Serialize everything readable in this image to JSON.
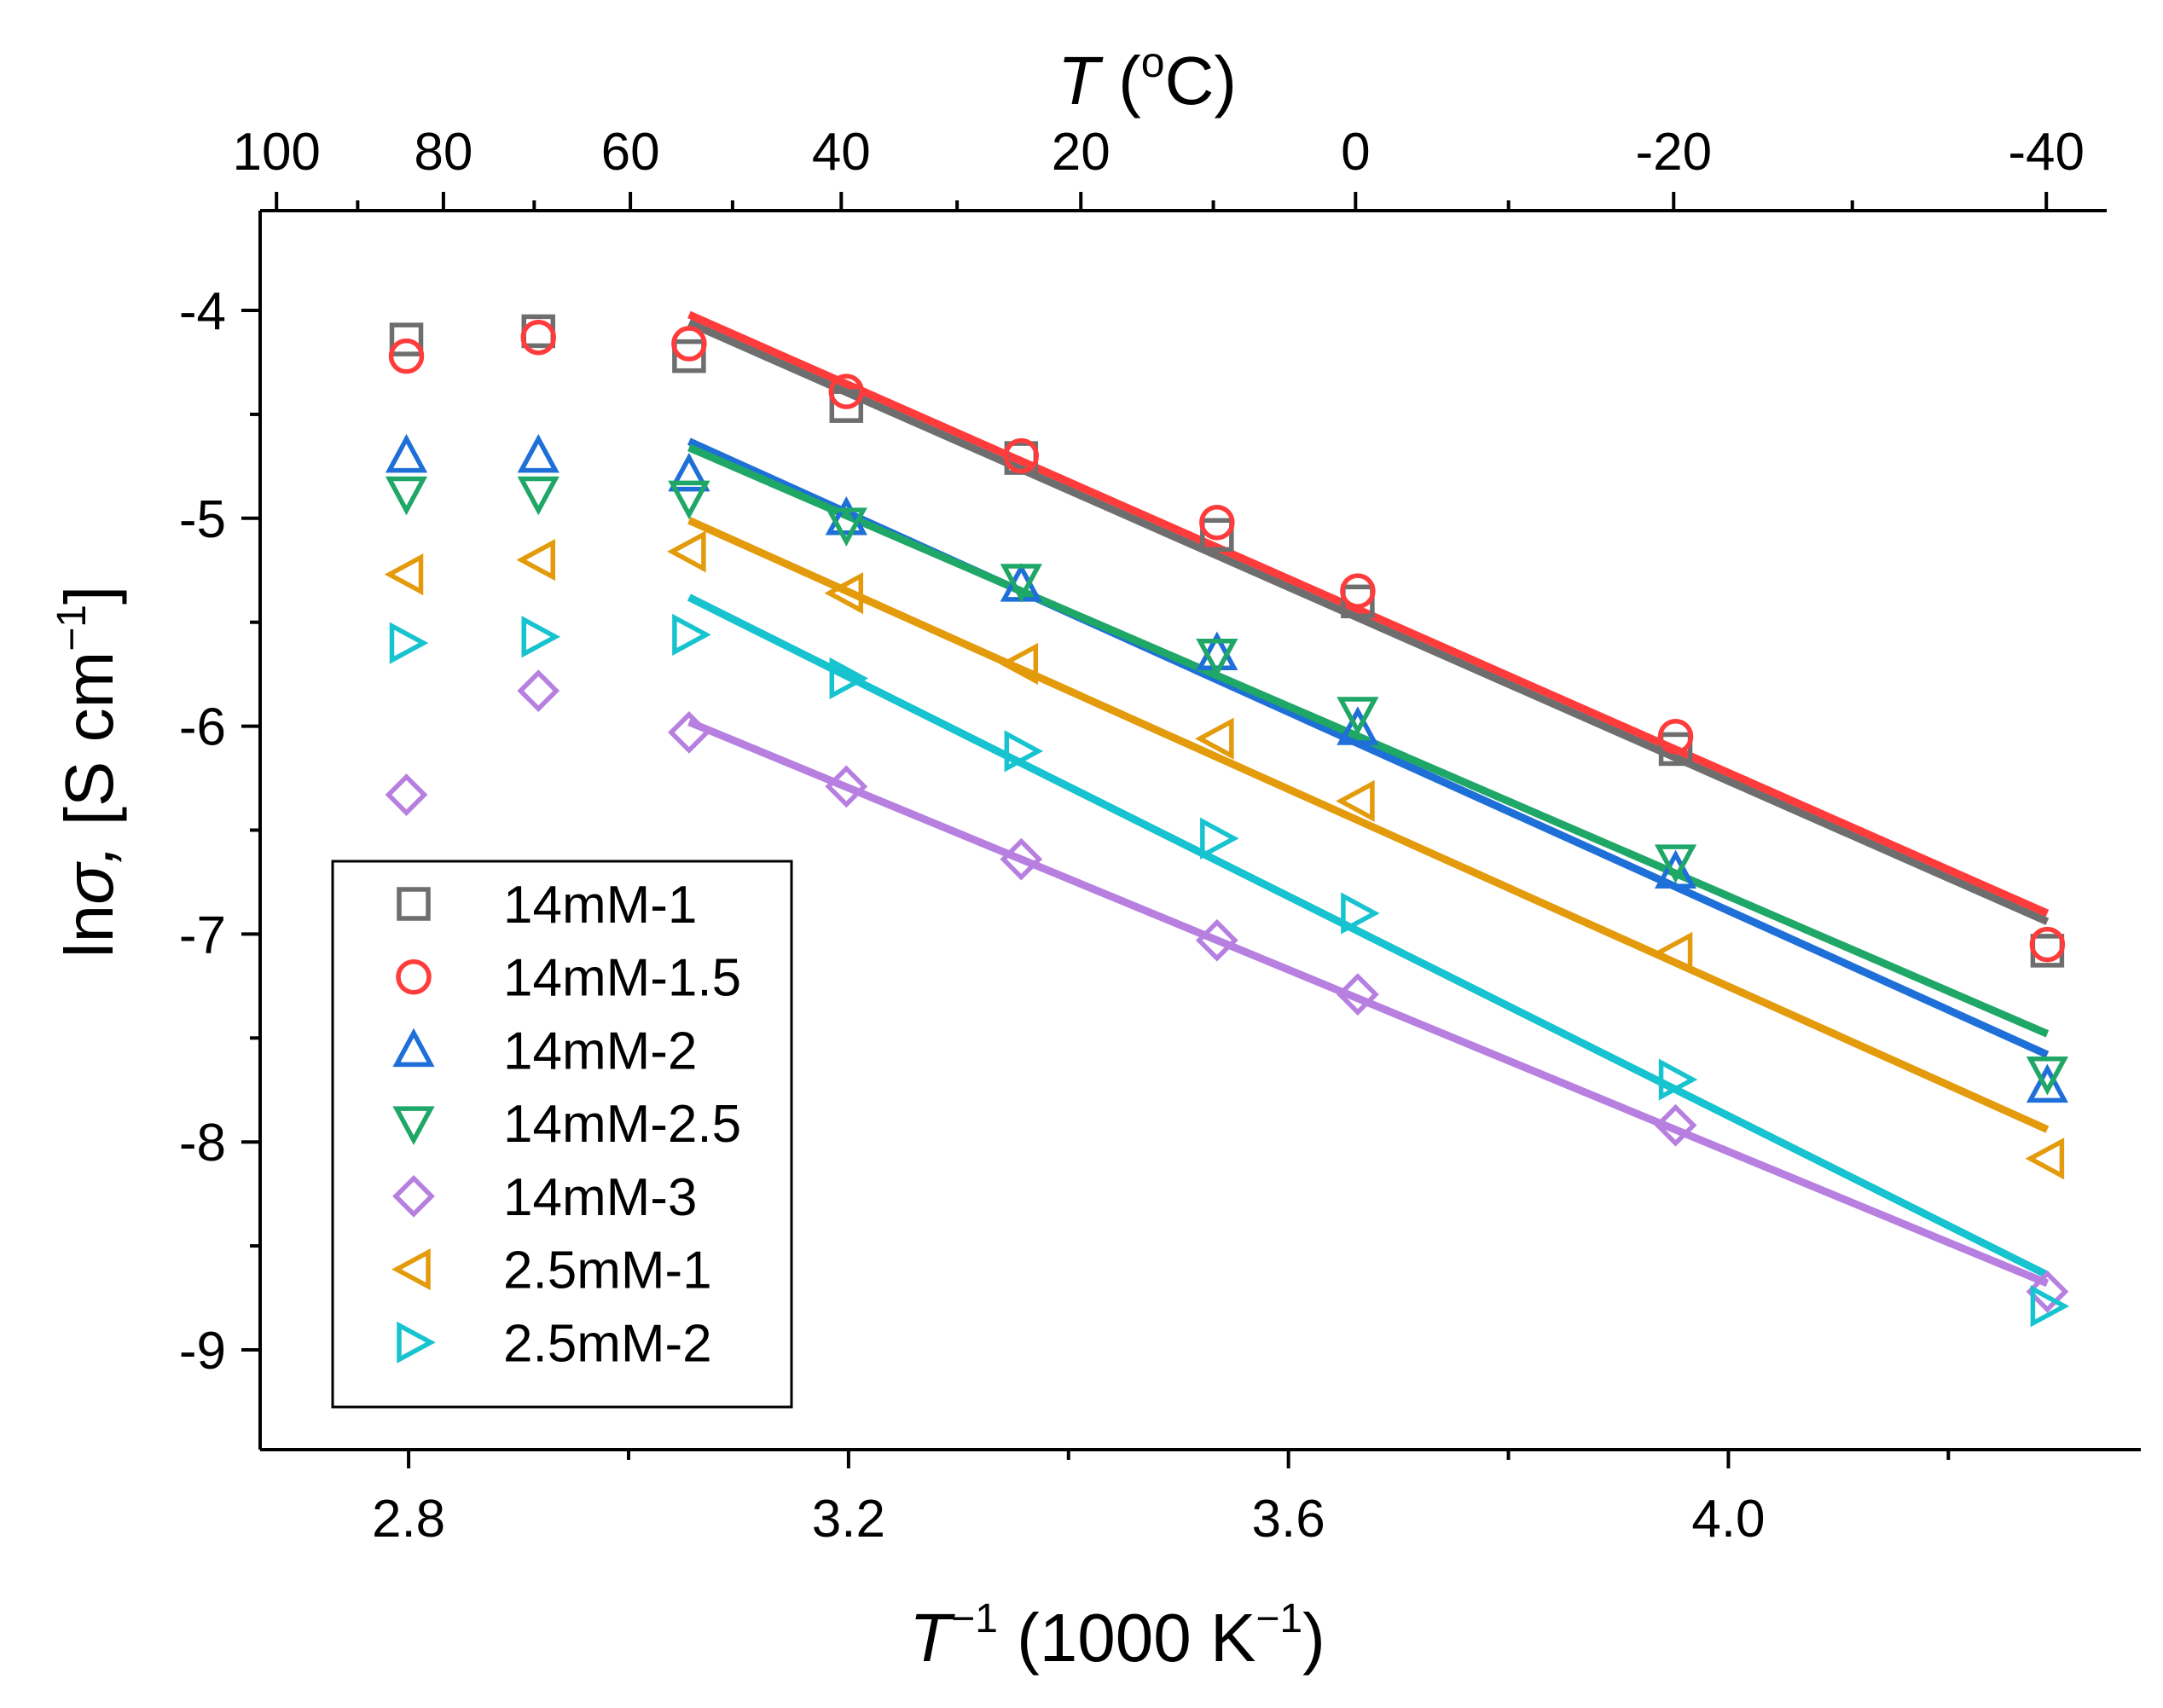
{
  "chart_data": {
    "type": "scatter",
    "xlabel": "T",
    "xlabel_sup": "−1",
    "xlabel_rest": " (1000 K",
    "xlabel_unit_sup": "−1",
    "xlabel_end": ")",
    "ylabel_ln": "ln",
    "ylabel_sigma": "σ,",
    "ylabel_rest": " [S cm",
    "ylabel_sup": "−1",
    "ylabel_end": "]",
    "top_xlabel_T": "T",
    "top_xlabel_rest": " (",
    "top_xlabel_deg": "o",
    "top_xlabel_end": "C)",
    "xlim": [
      2.665,
      4.375
    ],
    "ylim": [
      -9.48,
      -3.52
    ],
    "xticks": [
      2.8,
      3.2,
      3.6,
      4.0
    ],
    "xtick_labels": [
      "2.8",
      "3.2",
      "3.6",
      "4.0"
    ],
    "yticks": [
      -4,
      -5,
      -6,
      -7,
      -8,
      -9
    ],
    "ytick_labels": [
      "-4",
      "-5",
      "-6",
      "-7",
      "-8",
      "-9"
    ],
    "top_ticks_celsius": [
      100,
      80,
      60,
      40,
      20,
      0,
      -20,
      -40
    ],
    "top_tick_labels": [
      "100",
      "80",
      "60",
      "40",
      "20",
      "0",
      "-20",
      "-40"
    ],
    "x": [
      2.798,
      2.918,
      3.055,
      3.198,
      3.357,
      3.535,
      3.663,
      3.952,
      4.29
    ],
    "series": [
      {
        "name": "14mM-1",
        "marker": "square",
        "color": "#6e6e6e",
        "values": [
          -4.14,
          -4.1,
          -4.22,
          -4.46,
          -4.71,
          -5.08,
          -5.4,
          -6.11,
          -7.08
        ],
        "fit": {
          "x": [
            3.055,
            4.29
          ],
          "y": [
            -4.06,
            -6.94
          ]
        }
      },
      {
        "name": "14mM-1.5",
        "marker": "circle",
        "color": "#ff3b3b",
        "values": [
          -4.22,
          -4.13,
          -4.16,
          -4.39,
          -4.7,
          -5.02,
          -5.35,
          -6.05,
          -7.05
        ],
        "fit": {
          "x": [
            3.055,
            4.29
          ],
          "y": [
            -4.02,
            -6.9
          ]
        }
      },
      {
        "name": "14mM-2",
        "marker": "triangle-up",
        "color": "#1f6fd8",
        "values": [
          -4.7,
          -4.7,
          -4.79,
          -5.0,
          -5.32,
          -5.65,
          -6.01,
          -6.7,
          -7.73
        ],
        "fit": {
          "x": [
            3.055,
            4.29
          ],
          "y": [
            -4.63,
            -7.58
          ]
        }
      },
      {
        "name": "14mM-2.5",
        "marker": "triangle-down",
        "color": "#1ea766",
        "values": [
          -4.88,
          -4.88,
          -4.9,
          -5.03,
          -5.3,
          -5.66,
          -5.94,
          -6.65,
          -7.67
        ],
        "fit": {
          "x": [
            3.055,
            4.29
          ],
          "y": [
            -4.66,
            -7.48
          ]
        }
      },
      {
        "name": "14mM-3",
        "marker": "diamond",
        "color": "#b77fe0",
        "values": [
          -6.33,
          -5.83,
          -6.03,
          -6.29,
          -6.64,
          -7.03,
          -7.29,
          -7.92,
          -8.72
        ],
        "fit": {
          "x": [
            3.055,
            4.29
          ],
          "y": [
            -5.98,
            -8.68
          ]
        }
      },
      {
        "name": "2.5mM-1",
        "marker": "triangle-left",
        "color": "#e39b0b",
        "values": [
          -5.27,
          -5.2,
          -5.16,
          -5.36,
          -5.7,
          -6.06,
          -6.36,
          -7.09,
          -8.08
        ],
        "fit": {
          "x": [
            3.055,
            4.29
          ],
          "y": [
            -5.01,
            -7.94
          ]
        }
      },
      {
        "name": "2.5mM-2",
        "marker": "triangle-right",
        "color": "#17c3cf",
        "values": [
          -5.6,
          -5.57,
          -5.56,
          -5.77,
          -6.12,
          -6.54,
          -6.9,
          -7.7,
          -8.79
        ],
        "fit": {
          "x": [
            3.055,
            4.29
          ],
          "y": [
            -5.38,
            -8.64
          ]
        }
      }
    ],
    "legend_position": "bottom-left"
  }
}
